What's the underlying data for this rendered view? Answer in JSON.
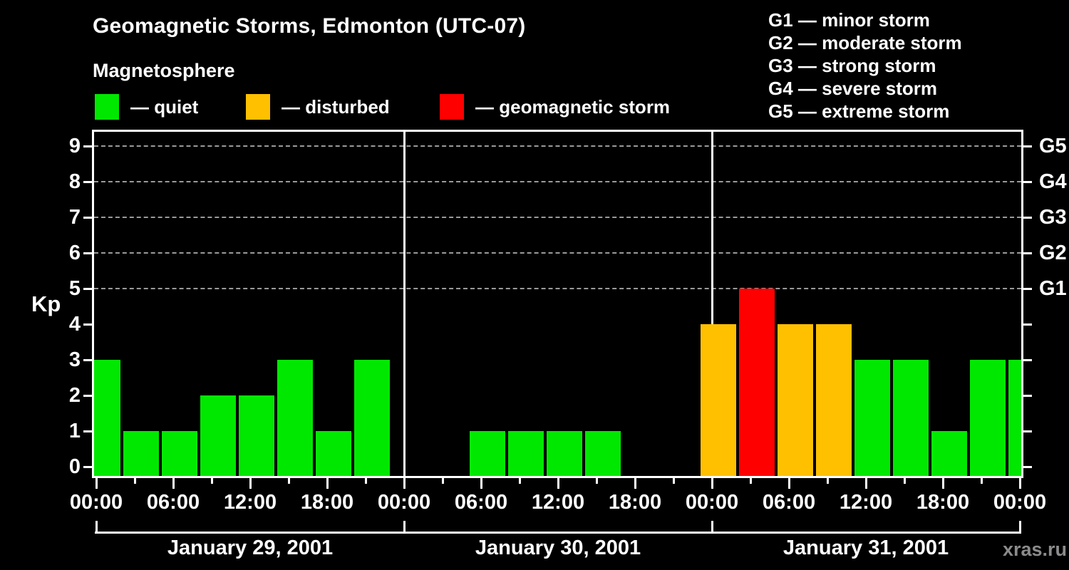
{
  "header": {
    "title": "Geomagnetic Storms, Edmonton (UTC-07)",
    "subtitle": "Magnetosphere",
    "condition_legend": [
      {
        "name": "quiet",
        "label": "— quiet",
        "color": "#00E800"
      },
      {
        "name": "disturbed",
        "label": "— disturbed",
        "color": "#FFC000"
      },
      {
        "name": "storm",
        "label": "— geomagnetic storm",
        "color": "#FF0000"
      }
    ],
    "storm_scale_legend": [
      "G1 — minor storm",
      "G2 — moderate storm",
      "G3 — strong storm",
      "G4 — severe storm",
      "G5 — extreme storm"
    ]
  },
  "watermark": "xras.ru",
  "chart_data": {
    "type": "bar",
    "title": "Geomagnetic Storms, Edmonton (UTC-07)",
    "ylabel": "Kp",
    "ylim": [
      0,
      9
    ],
    "y_ticks": [
      0,
      1,
      2,
      3,
      4,
      5,
      6,
      7,
      8,
      9
    ],
    "gridlines_kp": [
      5,
      6,
      7,
      8,
      9
    ],
    "grid_style": "dashed",
    "right_axis": [
      {
        "kp": 5,
        "label": "G1"
      },
      {
        "kp": 6,
        "label": "G2"
      },
      {
        "kp": 7,
        "label": "G3"
      },
      {
        "kp": 8,
        "label": "G4"
      },
      {
        "kp": 9,
        "label": "G5"
      }
    ],
    "interval_hours": 3,
    "x_tick_labels_6h": [
      "00:00",
      "06:00",
      "12:00",
      "18:00"
    ],
    "final_x_tick_label": "00:00",
    "days": [
      {
        "date": "January 29, 2001",
        "kp_values": [
          3,
          1,
          1,
          2,
          2,
          3,
          1,
          3
        ]
      },
      {
        "date": "January 30, 2001",
        "kp_values": [
          0,
          0,
          1,
          1,
          1,
          1,
          0,
          0
        ]
      },
      {
        "date": "January 31, 2001",
        "kp_values": [
          4,
          5,
          4,
          4,
          3,
          3,
          1,
          3
        ]
      }
    ],
    "clipped_bar_at_right_kp": 3,
    "colors": {
      "quiet": "#00E800",
      "disturbed": "#FFC000",
      "storm": "#FF0000"
    },
    "color_rule": {
      "quiet_max_kp": 3,
      "disturbed_kp": 4,
      "storm_min_kp": 5
    }
  }
}
